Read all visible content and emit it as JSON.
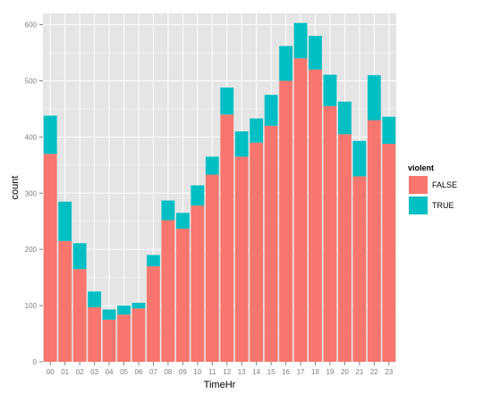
{
  "chart_data": {
    "type": "bar",
    "stacked": true,
    "xlabel": "TimeHr",
    "ylabel": "count",
    "ylim": [
      0,
      620
    ],
    "yticks": [
      0,
      100,
      200,
      300,
      400,
      500,
      600
    ],
    "grid": true,
    "legend_position": "right",
    "legend_title": "violent",
    "categories": [
      "00",
      "01",
      "02",
      "03",
      "04",
      "05",
      "06",
      "07",
      "08",
      "09",
      "10",
      "11",
      "12",
      "13",
      "14",
      "15",
      "16",
      "17",
      "18",
      "19",
      "20",
      "21",
      "22",
      "23"
    ],
    "series": [
      {
        "name": "FALSE",
        "color": "#F8766D",
        "values": [
          370,
          215,
          165,
          97,
          75,
          84,
          95,
          170,
          252,
          237,
          278,
          333,
          440,
          365,
          390,
          420,
          500,
          540,
          520,
          455,
          405,
          330,
          430,
          388
        ]
      },
      {
        "name": "TRUE",
        "color": "#00BFC4",
        "values": [
          68,
          70,
          46,
          28,
          18,
          16,
          10,
          20,
          35,
          28,
          36,
          32,
          48,
          45,
          43,
          55,
          62,
          63,
          60,
          56,
          58,
          63,
          80,
          48
        ]
      }
    ]
  },
  "colors": {
    "panel_background": "#E5E5E5",
    "grid_major": "#FFFFFF",
    "grid_minor": "#F2F2F2"
  }
}
